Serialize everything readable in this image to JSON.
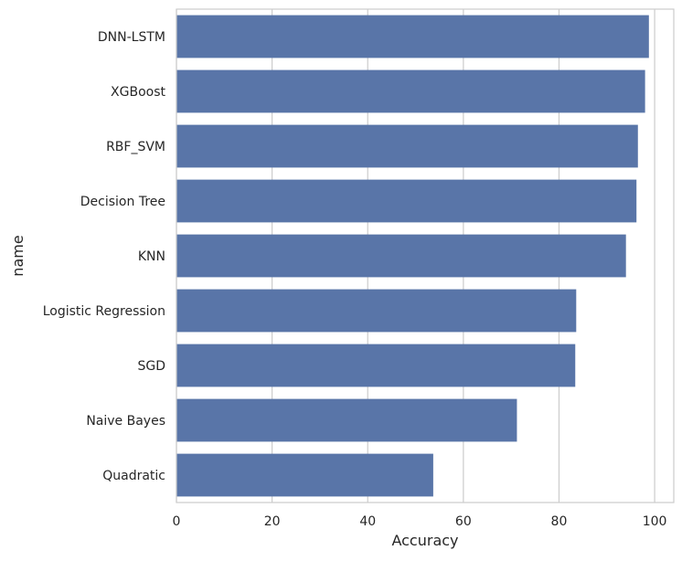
{
  "chart_data": {
    "type": "bar",
    "orientation": "horizontal",
    "categories": [
      "DNN-LSTM",
      "XGBoost",
      "RBF_SVM",
      "Decision Tree",
      "KNN",
      "Logistic Regression",
      "SGD",
      "Naive Bayes",
      "Quadratic"
    ],
    "values": [
      98.8,
      98.0,
      96.5,
      96.2,
      94.0,
      83.6,
      83.4,
      71.2,
      53.7
    ],
    "xlabel": "Accuracy",
    "ylabel": "name",
    "xlim": [
      0,
      104
    ],
    "xticks": [
      "0",
      "20",
      "40",
      "60",
      "80",
      "100"
    ],
    "grid": true,
    "bar_color": "#5975a8",
    "grid_color": "#cccccc"
  }
}
